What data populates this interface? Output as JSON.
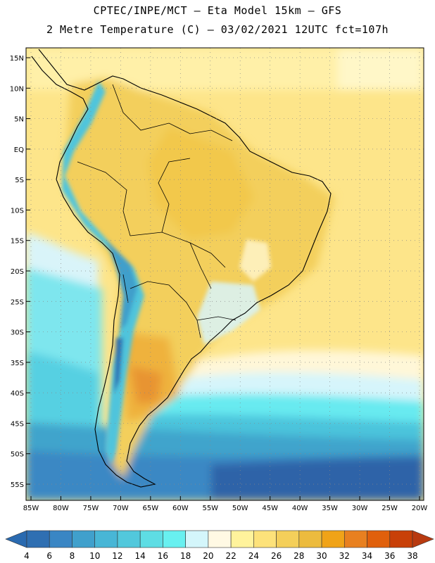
{
  "header": {
    "title_line1": "CPTEC/INPE/MCT –  Eta Model 15km – GFS",
    "title_line2": "2 Metre Temperature (C) – 03/02/2021 12UTC fct=107h"
  },
  "map": {
    "lat_labels": [
      "15N",
      "10N",
      "5N",
      "EQ",
      "5S",
      "10S",
      "15S",
      "20S",
      "25S",
      "30S",
      "35S",
      "40S",
      "45S",
      "50S",
      "55S"
    ],
    "lon_labels": [
      "85W",
      "80W",
      "75W",
      "70W",
      "65W",
      "60W",
      "55W",
      "50W",
      "45W",
      "40W",
      "35W",
      "30W",
      "25W",
      "20W"
    ],
    "lat_values": [
      15,
      10,
      5,
      0,
      -5,
      -10,
      -15,
      -20,
      -25,
      -30,
      -35,
      -40,
      -45,
      -50,
      -55
    ],
    "lon_values": [
      -85,
      -80,
      -75,
      -70,
      -65,
      -60,
      -55,
      -50,
      -45,
      -40,
      -35,
      -30,
      -25,
      -20
    ]
  },
  "colorbar": {
    "values": [
      "4",
      "6",
      "8",
      "10",
      "12",
      "14",
      "16",
      "18",
      "20",
      "22",
      "24",
      "26",
      "28",
      "30",
      "32",
      "34",
      "36",
      "38"
    ],
    "under_color": "#2a6ab0",
    "over_color": "#b83a10",
    "colors": [
      "#2f6fb2",
      "#3a86c4",
      "#40a0cc",
      "#48b6d6",
      "#52c8dc",
      "#5edde4",
      "#68f0f0",
      "#d4f6fb",
      "#fff9e4",
      "#fff39c",
      "#fde27a",
      "#f4cf5a",
      "#ecbb3e",
      "#f0a318",
      "#e88020",
      "#e0600c",
      "#c84008"
    ]
  }
}
